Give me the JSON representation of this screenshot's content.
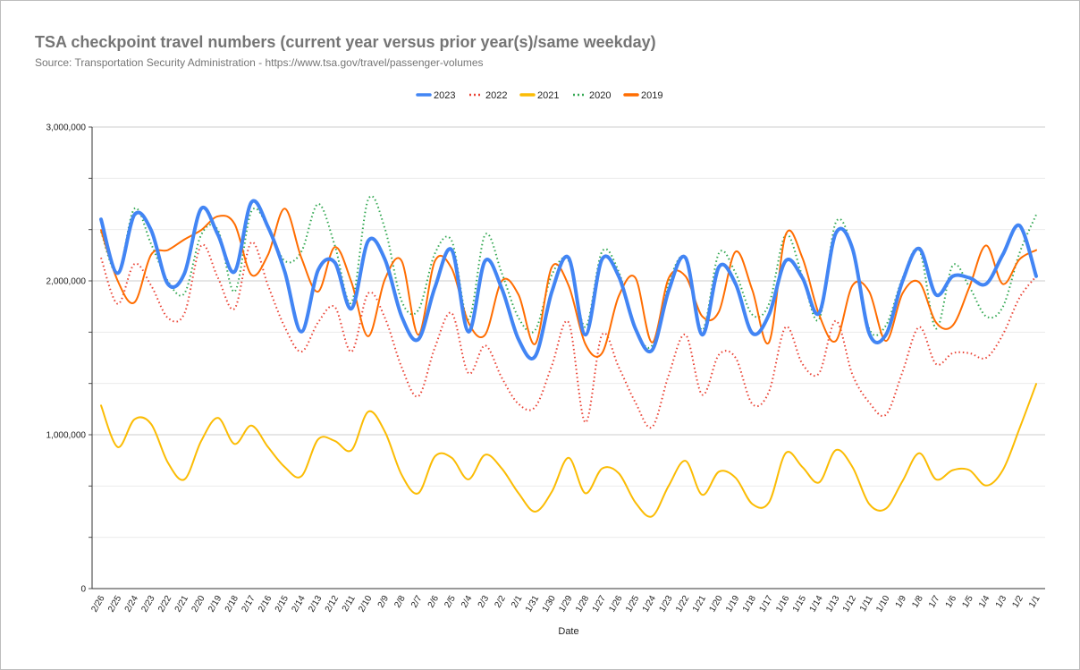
{
  "header": {
    "title": "TSA checkpoint travel numbers (current year versus prior year(s)/same weekday)",
    "subtitle": "Source: Transportation Security Administration - https://www.tsa.gov/travel/passenger-volumes"
  },
  "chart_data": {
    "type": "line",
    "title": "TSA checkpoint travel numbers (current year versus prior year(s)/same weekday)",
    "subtitle": "Source: Transportation Security Administration - https://www.tsa.gov/travel/passenger-volumes",
    "xlabel": "Date",
    "ylabel": "",
    "ylim": [
      0,
      3000000
    ],
    "yticks": [
      "0",
      "1,000,000",
      "2,000,000",
      "3,000,000"
    ],
    "grid": true,
    "legend_position": "top",
    "x": [
      "2/26",
      "2/25",
      "2/24",
      "2/23",
      "2/22",
      "2/21",
      "2/20",
      "2/19",
      "2/18",
      "2/17",
      "2/16",
      "2/15",
      "2/14",
      "2/13",
      "2/12",
      "2/11",
      "2/10",
      "2/9",
      "2/8",
      "2/7",
      "2/6",
      "2/5",
      "2/4",
      "2/3",
      "2/2",
      "2/1",
      "1/31",
      "1/30",
      "1/29",
      "1/28",
      "1/27",
      "1/26",
      "1/25",
      "1/24",
      "1/23",
      "1/22",
      "1/21",
      "1/20",
      "1/19",
      "1/18",
      "1/17",
      "1/16",
      "1/15",
      "1/14",
      "1/13",
      "1/12",
      "1/11",
      "1/10",
      "1/9",
      "1/8",
      "1/7",
      "1/6",
      "1/5",
      "1/4",
      "1/3",
      "1/2",
      "1/1"
    ],
    "series": [
      {
        "name": "2023",
        "color": "#4285f4",
        "dash": "solid",
        "width": 4,
        "values": [
          2400000,
          2050000,
          2430000,
          2330000,
          1980000,
          2050000,
          2470000,
          2300000,
          2060000,
          2510000,
          2350000,
          2060000,
          1670000,
          2070000,
          2120000,
          1820000,
          2260000,
          2140000,
          1770000,
          1620000,
          1960000,
          2200000,
          1670000,
          2130000,
          1950000,
          1620000,
          1510000,
          1930000,
          2150000,
          1650000,
          2140000,
          2030000,
          1690000,
          1550000,
          1940000,
          2150000,
          1650000,
          2090000,
          1980000,
          1660000,
          1780000,
          2130000,
          2020000,
          1790000,
          2310000,
          2210000,
          1660000,
          1650000,
          2000000,
          2210000,
          1910000,
          2030000,
          2020000,
          1980000,
          2170000,
          2360000,
          2030000
        ]
      },
      {
        "name": "2022",
        "color": "#ea4335",
        "dash": "dot",
        "width": 2,
        "values": [
          2150000,
          1850000,
          2110000,
          1970000,
          1760000,
          1790000,
          2230000,
          2020000,
          1820000,
          2250000,
          1970000,
          1700000,
          1540000,
          1730000,
          1830000,
          1540000,
          1920000,
          1760000,
          1440000,
          1250000,
          1570000,
          1790000,
          1400000,
          1580000,
          1370000,
          1200000,
          1180000,
          1450000,
          1730000,
          1080000,
          1650000,
          1440000,
          1210000,
          1050000,
          1390000,
          1650000,
          1260000,
          1520000,
          1500000,
          1200000,
          1280000,
          1700000,
          1460000,
          1400000,
          1740000,
          1390000,
          1210000,
          1130000,
          1410000,
          1700000,
          1460000,
          1530000,
          1530000,
          1500000,
          1650000,
          1890000,
          2030000
        ]
      },
      {
        "name": "2021",
        "color": "#fbbc04",
        "dash": "solid",
        "width": 2,
        "values": [
          1190000,
          920000,
          1100000,
          1070000,
          820000,
          710000,
          960000,
          1110000,
          940000,
          1060000,
          920000,
          790000,
          730000,
          970000,
          960000,
          900000,
          1150000,
          1020000,
          740000,
          620000,
          860000,
          850000,
          710000,
          870000,
          780000,
          620000,
          500000,
          630000,
          850000,
          620000,
          780000,
          750000,
          560000,
          470000,
          670000,
          830000,
          610000,
          760000,
          720000,
          550000,
          560000,
          880000,
          790000,
          690000,
          900000,
          790000,
          550000,
          520000,
          700000,
          880000,
          710000,
          770000,
          770000,
          670000,
          770000,
          1040000,
          1330000
        ]
      },
      {
        "name": "2020",
        "color": "#34a853",
        "dash": "dot",
        "width": 2,
        "values": [
          2320000,
          2050000,
          2470000,
          2240000,
          2000000,
          1920000,
          2300000,
          2330000,
          1930000,
          2450000,
          2350000,
          2130000,
          2190000,
          2500000,
          2230000,
          1860000,
          2530000,
          2340000,
          1870000,
          1810000,
          2180000,
          2260000,
          1750000,
          2300000,
          2050000,
          1760000,
          1680000,
          2040000,
          2130000,
          1700000,
          2190000,
          2060000,
          1690000,
          1580000,
          1990000,
          2150000,
          1680000,
          2180000,
          2050000,
          1780000,
          1850000,
          2300000,
          2030000,
          1750000,
          2380000,
          2210000,
          1690000,
          1710000,
          2020000,
          2200000,
          1690000,
          2100000,
          1960000,
          1770000,
          1830000,
          2180000,
          2430000
        ]
      },
      {
        "name": "2019",
        "color": "#ff6d01",
        "dash": "solid",
        "width": 2,
        "values": [
          2330000,
          2000000,
          1860000,
          2170000,
          2200000,
          2270000,
          2330000,
          2420000,
          2370000,
          2040000,
          2170000,
          2470000,
          2150000,
          1930000,
          2220000,
          1990000,
          1640000,
          2010000,
          2130000,
          1650000,
          2130000,
          2080000,
          1730000,
          1650000,
          2000000,
          1910000,
          1590000,
          2090000,
          1970000,
          1590000,
          1530000,
          1900000,
          2020000,
          1600000,
          2020000,
          2030000,
          1770000,
          1800000,
          2190000,
          1940000,
          1600000,
          2300000,
          2150000,
          1780000,
          1610000,
          1970000,
          1930000,
          1610000,
          1920000,
          1990000,
          1730000,
          1710000,
          1960000,
          2230000,
          1980000,
          2140000,
          2200000
        ]
      }
    ]
  }
}
